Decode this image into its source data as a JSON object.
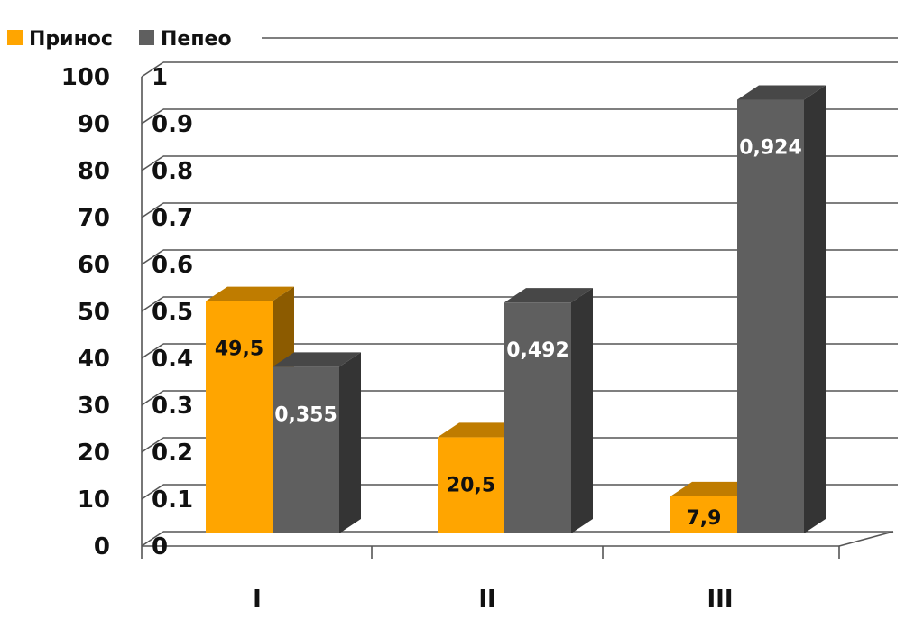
{
  "chart_data": {
    "type": "bar",
    "categories": [
      "I",
      "II",
      "III"
    ],
    "series": [
      {
        "name": "Принос",
        "values": [
          49.5,
          20.5,
          7.9
        ],
        "labels": [
          "49,5",
          "20,5",
          "7,9"
        ],
        "axis": "left",
        "color": "#FFA500",
        "label_color": "#111111"
      },
      {
        "name": "Пепео",
        "values": [
          0.355,
          0.492,
          0.924
        ],
        "labels": [
          "0,355",
          "0,492",
          "0,924"
        ],
        "axis": "right",
        "color": "#5f5f5f",
        "label_color": "#ffffff"
      }
    ],
    "y_left": {
      "min": 0,
      "max": 100,
      "ticks": [
        "0",
        "10",
        "20",
        "30",
        "40",
        "50",
        "60",
        "70",
        "80",
        "90",
        "100"
      ]
    },
    "y_right": {
      "min": 0,
      "max": 1,
      "ticks": [
        "0",
        "0.1",
        "0.2",
        "0.3",
        "0.4",
        "0.5",
        "0.6",
        "0.7",
        "0.8",
        "0.9",
        "1"
      ]
    },
    "grid": true,
    "legend": "top-left",
    "style": "3d-bar"
  }
}
